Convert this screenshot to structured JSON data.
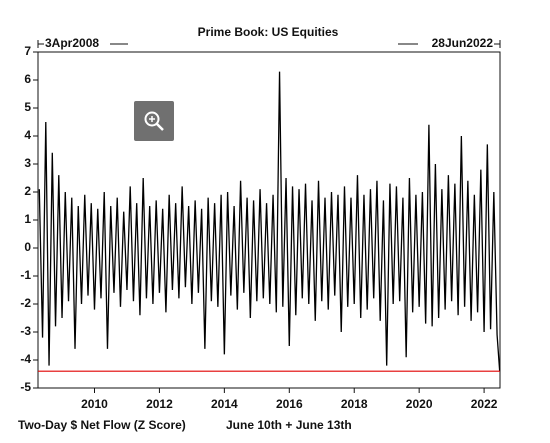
{
  "chart_data": {
    "type": "line",
    "title": "Prime Book: US Equities",
    "start_label": "3Apr2008",
    "end_label": "28Jun2022",
    "x_label": "Two-Day $ Net Flow (Z Score)",
    "reference_label": "June 10th + June 13th",
    "reference_value": -4.4,
    "reference_color": "#e00000",
    "xlim": [
      2008.26,
      2022.49
    ],
    "xticks": [
      2010,
      2012,
      2014,
      2016,
      2018,
      2020,
      2022
    ],
    "ylim": [
      -5,
      7
    ],
    "yticks": [
      -5,
      -4,
      -3,
      -2,
      -1,
      0,
      1,
      2,
      3,
      4,
      5,
      6,
      7
    ],
    "series": [
      {
        "color": "#000000",
        "x": [
          2008.3,
          2008.4,
          2008.5,
          2008.6,
          2008.7,
          2008.8,
          2008.9,
          2009.0,
          2009.1,
          2009.2,
          2009.3,
          2009.4,
          2009.5,
          2009.6,
          2009.7,
          2009.8,
          2009.9,
          2010.0,
          2010.1,
          2010.2,
          2010.3,
          2010.4,
          2010.5,
          2010.6,
          2010.7,
          2010.8,
          2010.9,
          2011.0,
          2011.1,
          2011.2,
          2011.3,
          2011.4,
          2011.5,
          2011.6,
          2011.7,
          2011.8,
          2011.9,
          2012.0,
          2012.1,
          2012.2,
          2012.3,
          2012.4,
          2012.5,
          2012.6,
          2012.7,
          2012.8,
          2012.9,
          2013.0,
          2013.1,
          2013.2,
          2013.3,
          2013.4,
          2013.5,
          2013.6,
          2013.7,
          2013.8,
          2013.9,
          2014.0,
          2014.1,
          2014.2,
          2014.3,
          2014.4,
          2014.5,
          2014.6,
          2014.7,
          2014.8,
          2014.9,
          2015.0,
          2015.1,
          2015.2,
          2015.3,
          2015.4,
          2015.5,
          2015.6,
          2015.7,
          2015.8,
          2015.9,
          2016.0,
          2016.1,
          2016.2,
          2016.3,
          2016.4,
          2016.5,
          2016.6,
          2016.7,
          2016.8,
          2016.9,
          2017.0,
          2017.1,
          2017.2,
          2017.3,
          2017.4,
          2017.5,
          2017.6,
          2017.7,
          2017.8,
          2017.9,
          2018.0,
          2018.1,
          2018.2,
          2018.3,
          2018.4,
          2018.5,
          2018.6,
          2018.7,
          2018.8,
          2018.9,
          2019.0,
          2019.1,
          2019.2,
          2019.3,
          2019.4,
          2019.5,
          2019.6,
          2019.7,
          2019.8,
          2019.9,
          2020.0,
          2020.1,
          2020.2,
          2020.3,
          2020.4,
          2020.5,
          2020.6,
          2020.7,
          2020.8,
          2020.9,
          2021.0,
          2021.1,
          2021.2,
          2021.3,
          2021.4,
          2021.5,
          2021.6,
          2021.7,
          2021.8,
          2021.9,
          2022.0,
          2022.1,
          2022.2,
          2022.3,
          2022.4,
          2022.48
        ],
        "values": [
          2.1,
          -3.2,
          4.5,
          -4.2,
          3.4,
          -2.8,
          2.6,
          -2.5,
          2.0,
          -1.9,
          1.8,
          -3.6,
          1.5,
          -2.0,
          1.9,
          -1.7,
          1.6,
          -2.2,
          1.4,
          -1.8,
          2.0,
          -3.6,
          1.5,
          -1.6,
          1.8,
          -2.1,
          1.3,
          -1.5,
          2.2,
          -1.9,
          1.6,
          -2.4,
          2.5,
          -1.8,
          1.5,
          -2.0,
          1.7,
          -1.6,
          1.4,
          -2.3,
          1.9,
          -1.5,
          1.6,
          -1.8,
          2.2,
          -1.4,
          1.5,
          -2.0,
          1.7,
          -1.6,
          1.4,
          -3.6,
          1.8,
          -1.9,
          1.6,
          -2.1,
          1.9,
          -3.8,
          2.0,
          -1.7,
          1.5,
          -2.2,
          2.4,
          -1.6,
          1.8,
          -2.5,
          1.7,
          -1.9,
          2.1,
          -1.8,
          1.6,
          -2.0,
          1.9,
          -2.3,
          6.3,
          -2.1,
          2.5,
          -3.5,
          2.2,
          -2.4,
          2.1,
          -1.8,
          2.3,
          -2.0,
          1.7,
          -2.6,
          2.4,
          -1.9,
          1.8,
          -2.2,
          2.0,
          -1.7,
          1.9,
          -3.0,
          2.2,
          -2.1,
          1.8,
          -2.0,
          2.6,
          -2.5,
          1.9,
          -2.2,
          2.1,
          -1.8,
          2.4,
          -2.6,
          1.7,
          -4.2,
          2.3,
          -2.0,
          2.2,
          -1.9,
          1.8,
          -3.9,
          2.5,
          -2.3,
          1.9,
          -2.1,
          2.0,
          -2.7,
          4.4,
          -2.8,
          3.0,
          -2.5,
          2.1,
          -2.2,
          2.6,
          -1.9,
          2.3,
          -2.4,
          4.0,
          -2.1,
          2.4,
          -2.6,
          1.9,
          -2.3,
          2.8,
          -3.0,
          3.7,
          -2.9,
          2.0,
          -3.1,
          -4.4
        ]
      }
    ]
  }
}
